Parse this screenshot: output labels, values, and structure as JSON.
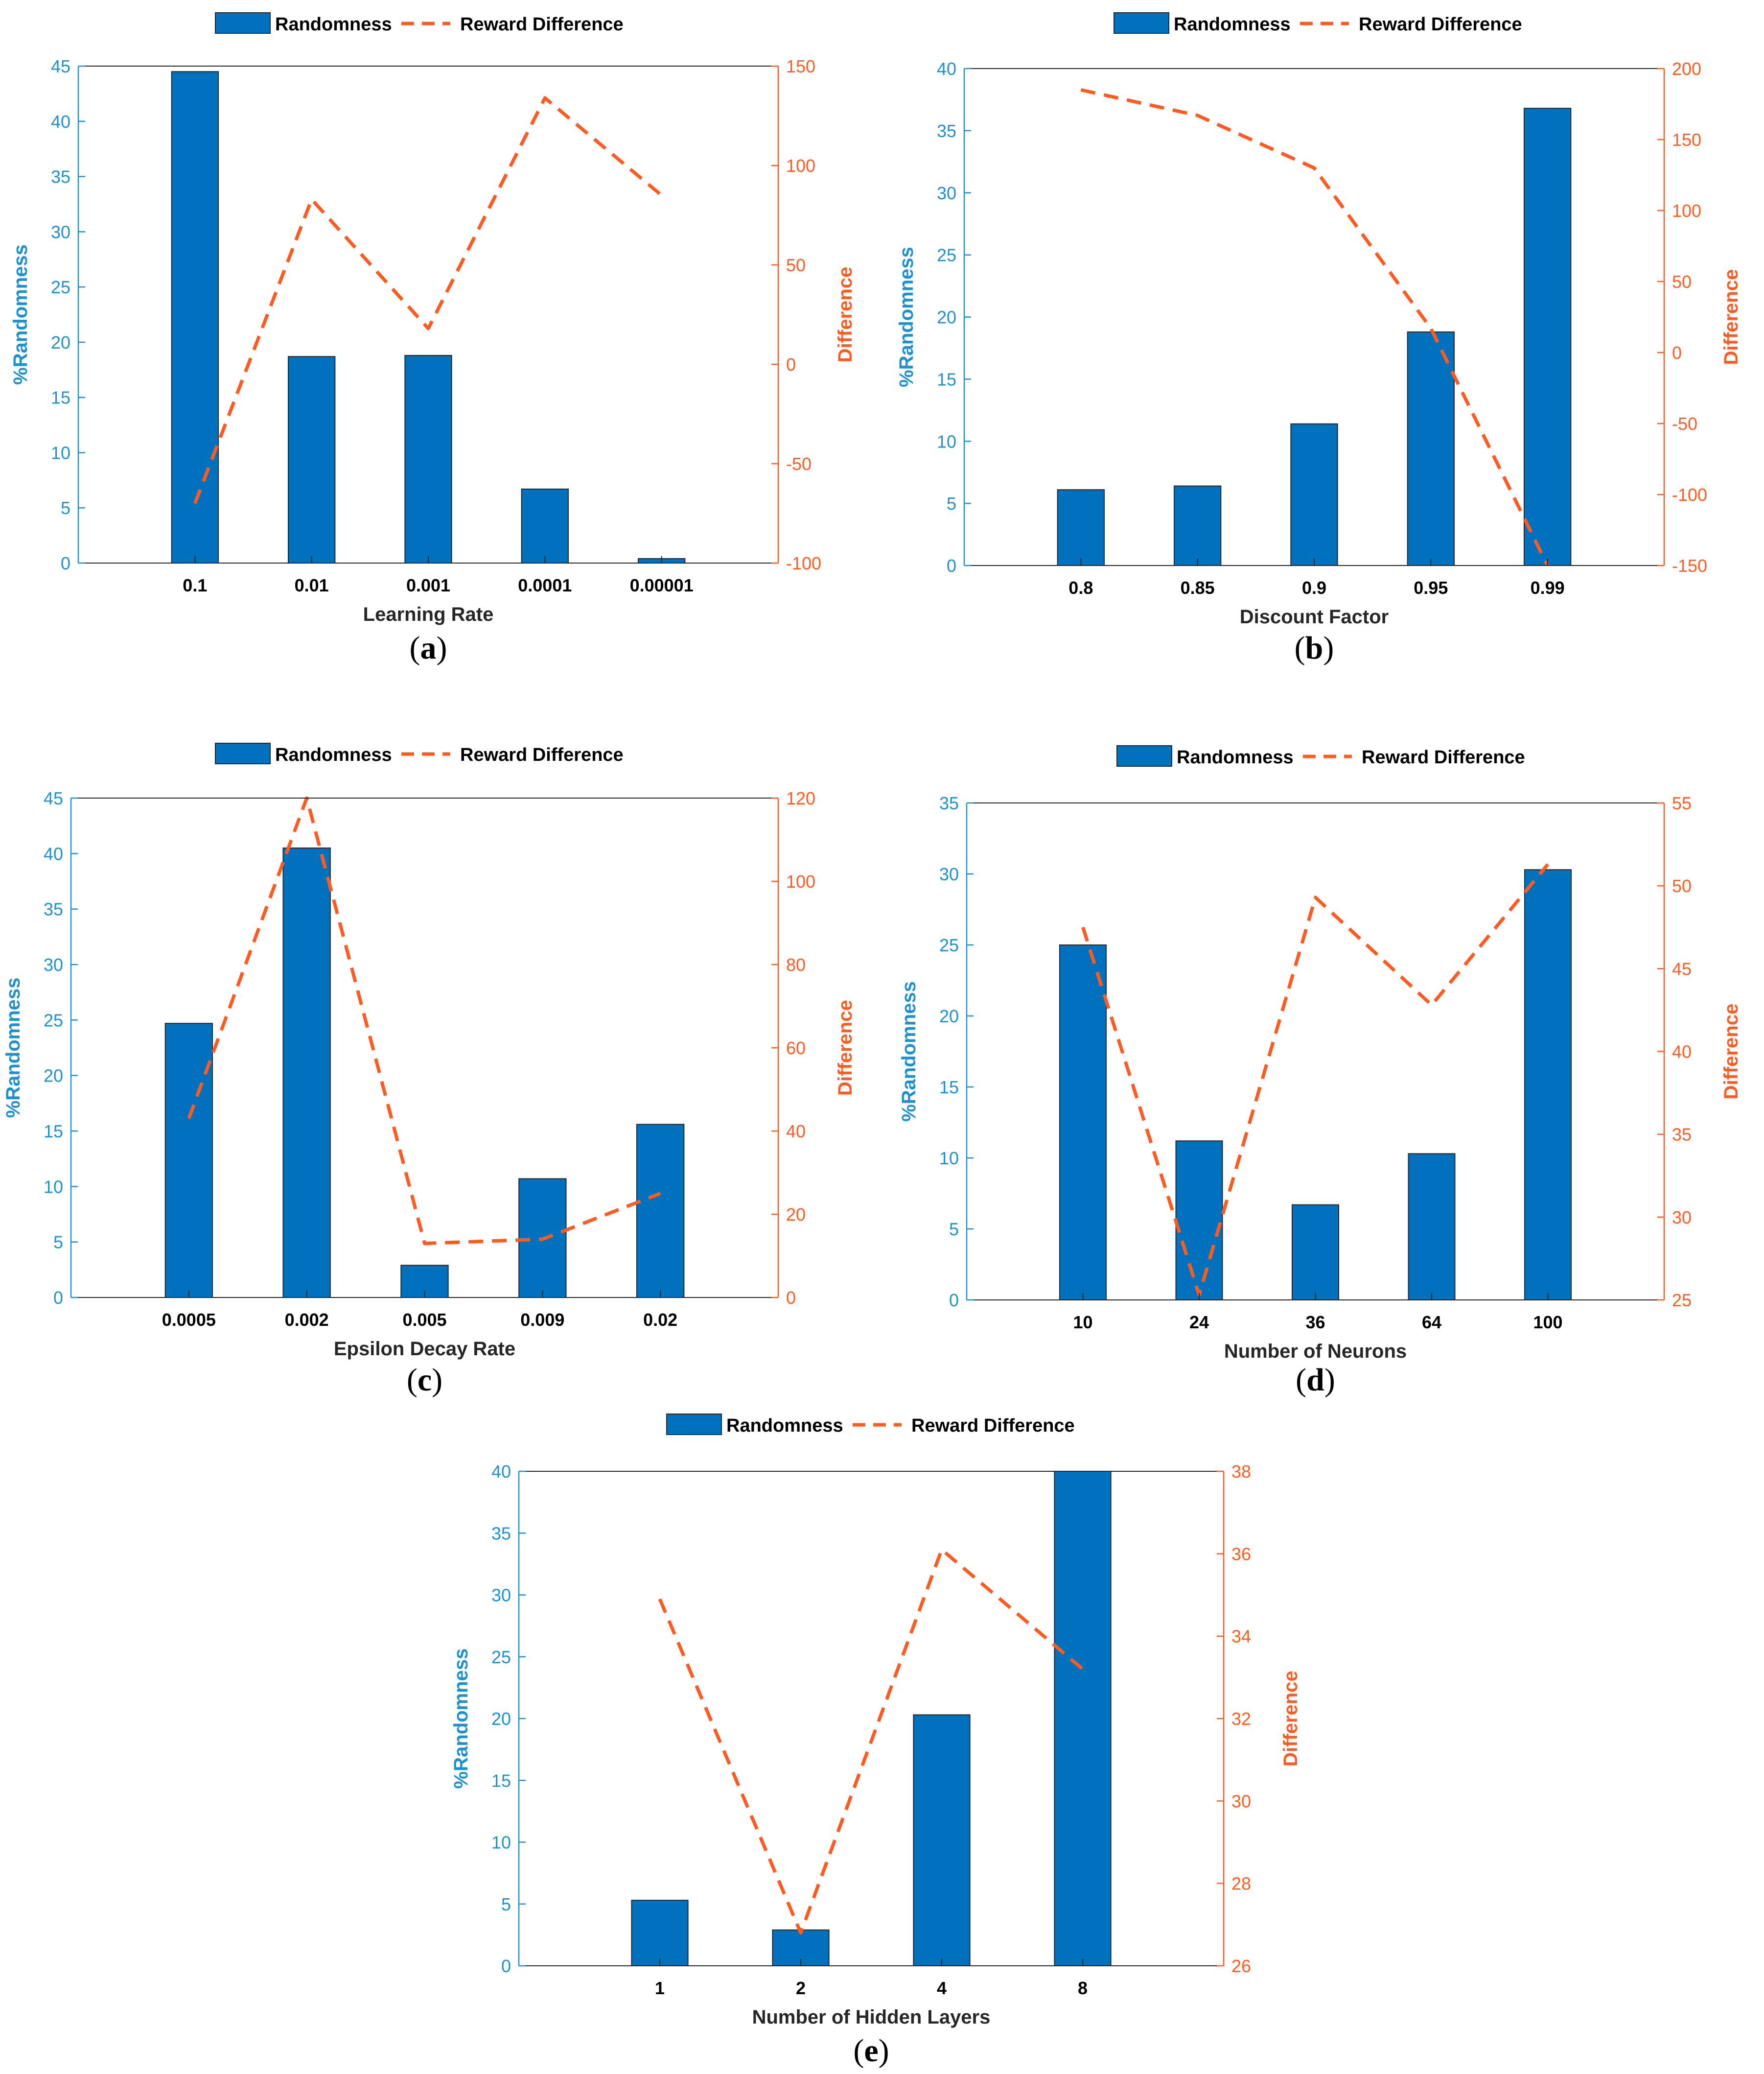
{
  "colors": {
    "bar": "#0072BD",
    "bar_edge": "#1a2a3a",
    "line": "#FF5A1F",
    "left_axis": "#1E90D0",
    "right_axis": "#FF5A1F",
    "tick_label": "#000000"
  },
  "legend": {
    "bar_label": "Randomness",
    "line_label": "Reward Difference"
  },
  "chart_data": [
    {
      "panel": "(a)",
      "letter": "a",
      "type": "bar",
      "title": "",
      "xlabel": "Learning Rate",
      "ylabel": "%Randomness",
      "y2label": "Difference",
      "categories": [
        "0.1",
        "0.01",
        "0.001",
        "0.0001",
        "0.00001"
      ],
      "series": [
        {
          "name": "Randomness",
          "axis": "left",
          "type": "bar",
          "values": [
            44.5,
            18.7,
            18.8,
            6.7,
            0.4
          ]
        },
        {
          "name": "Reward Difference",
          "axis": "right",
          "type": "line",
          "values": [
            -70,
            83,
            18,
            134,
            85
          ]
        }
      ],
      "ylim": [
        0,
        45
      ],
      "yticks": [
        0,
        5,
        10,
        15,
        20,
        25,
        30,
        35,
        40,
        45
      ],
      "y2lim": [
        -100,
        150
      ],
      "y2ticks": [
        -100,
        -50,
        0,
        50,
        100,
        150
      ]
    },
    {
      "panel": "(b)",
      "letter": "b",
      "type": "bar",
      "title": "",
      "xlabel": "Discount Factor",
      "ylabel": "%Randomness",
      "y2label": "Difference",
      "categories": [
        "0.8",
        "0.85",
        "0.9",
        "0.95",
        "0.99"
      ],
      "series": [
        {
          "name": "Randomness",
          "axis": "left",
          "type": "bar",
          "values": [
            6.1,
            6.4,
            11.4,
            18.8,
            36.8
          ]
        },
        {
          "name": "Reward Difference",
          "axis": "right",
          "type": "line",
          "values": [
            185,
            167,
            130,
            17,
            -150
          ]
        }
      ],
      "ylim": [
        0,
        40
      ],
      "yticks": [
        0,
        5,
        10,
        15,
        20,
        25,
        30,
        35,
        40
      ],
      "y2lim": [
        -150,
        200
      ],
      "y2ticks": [
        -150,
        -100,
        -50,
        0,
        50,
        100,
        150,
        200
      ]
    },
    {
      "panel": "(c)",
      "letter": "c",
      "type": "bar",
      "title": "",
      "xlabel": "Epsilon Decay Rate",
      "ylabel": "%Randomness",
      "y2label": "Difference",
      "categories": [
        "0.0005",
        "0.002",
        "0.005",
        "0.009",
        "0.02"
      ],
      "series": [
        {
          "name": "Randomness",
          "axis": "left",
          "type": "bar",
          "values": [
            24.7,
            40.5,
            2.9,
            10.7,
            15.6
          ]
        },
        {
          "name": "Reward Difference",
          "axis": "right",
          "type": "line",
          "values": [
            43,
            120,
            13,
            14,
            25
          ]
        }
      ],
      "ylim": [
        0,
        45
      ],
      "yticks": [
        0,
        5,
        10,
        15,
        20,
        25,
        30,
        35,
        40,
        45
      ],
      "y2lim": [
        0,
        120
      ],
      "y2ticks": [
        0,
        20,
        40,
        60,
        80,
        100,
        120
      ]
    },
    {
      "panel": "(d)",
      "letter": "d",
      "type": "bar",
      "title": "",
      "xlabel": "Number of Neurons",
      "ylabel": "%Randomness",
      "y2label": "Difference",
      "categories": [
        "10",
        "24",
        "36",
        "64",
        "100"
      ],
      "series": [
        {
          "name": "Randomness",
          "axis": "left",
          "type": "bar",
          "values": [
            25.0,
            11.2,
            6.7,
            10.3,
            30.3
          ]
        },
        {
          "name": "Reward Difference",
          "axis": "right",
          "type": "line",
          "values": [
            47.5,
            25.3,
            49.3,
            42.8,
            51.3
          ]
        }
      ],
      "ylim": [
        0,
        35
      ],
      "yticks": [
        0,
        5,
        10,
        15,
        20,
        25,
        30,
        35
      ],
      "y2lim": [
        25,
        55
      ],
      "y2ticks": [
        25,
        30,
        35,
        40,
        45,
        50,
        55
      ]
    },
    {
      "panel": "(e)",
      "letter": "e",
      "type": "bar",
      "title": "",
      "xlabel": "Number of Hidden Layers",
      "ylabel": "%Randomness",
      "y2label": "Difference",
      "categories": [
        "1",
        "2",
        "4",
        "8"
      ],
      "series": [
        {
          "name": "Randomness",
          "axis": "left",
          "type": "bar",
          "values": [
            5.3,
            2.9,
            20.3,
            40.0
          ]
        },
        {
          "name": "Reward Difference",
          "axis": "right",
          "type": "line",
          "values": [
            34.9,
            26.8,
            36.1,
            33.2
          ]
        }
      ],
      "ylim": [
        0,
        40
      ],
      "yticks": [
        0,
        5,
        10,
        15,
        20,
        25,
        30,
        35,
        40
      ],
      "y2lim": [
        26,
        38
      ],
      "y2ticks": [
        26,
        28,
        30,
        32,
        34,
        36,
        38
      ]
    }
  ]
}
